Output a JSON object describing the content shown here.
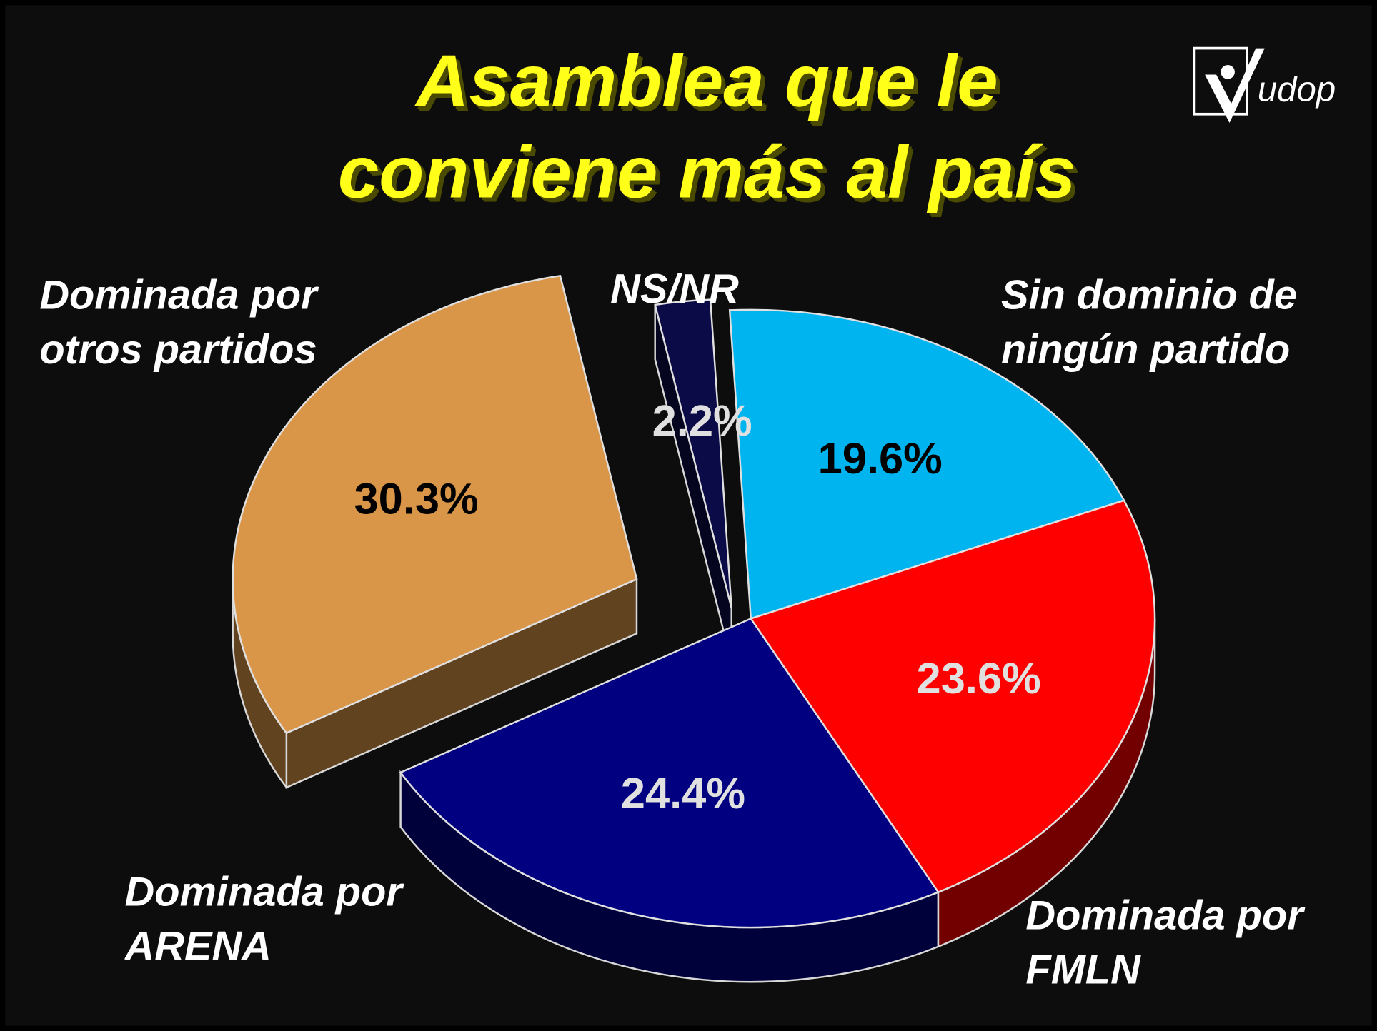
{
  "chart_data": {
    "type": "pie",
    "title": "Asamblea que le conviene más al país",
    "logo_text": "udop",
    "categories": [
      "Sin dominio de ningún partido",
      "Dominada por FMLN",
      "Dominada por ARENA",
      "Dominada por otros partidos",
      "NS/NR"
    ],
    "values": [
      19.6,
      23.6,
      24.4,
      30.3,
      2.2
    ],
    "value_labels": [
      "19.6%",
      "23.6%",
      "24.4%",
      "30.3%",
      "2.2%"
    ],
    "colors": [
      "#00b4f0",
      "#ff0000",
      "#000080",
      "#d99548",
      "#0b0b48"
    ],
    "label_colors": [
      "#000000",
      "#e0e0e0",
      "#e0e0e0",
      "#000000",
      "#e0e0e0"
    ]
  }
}
